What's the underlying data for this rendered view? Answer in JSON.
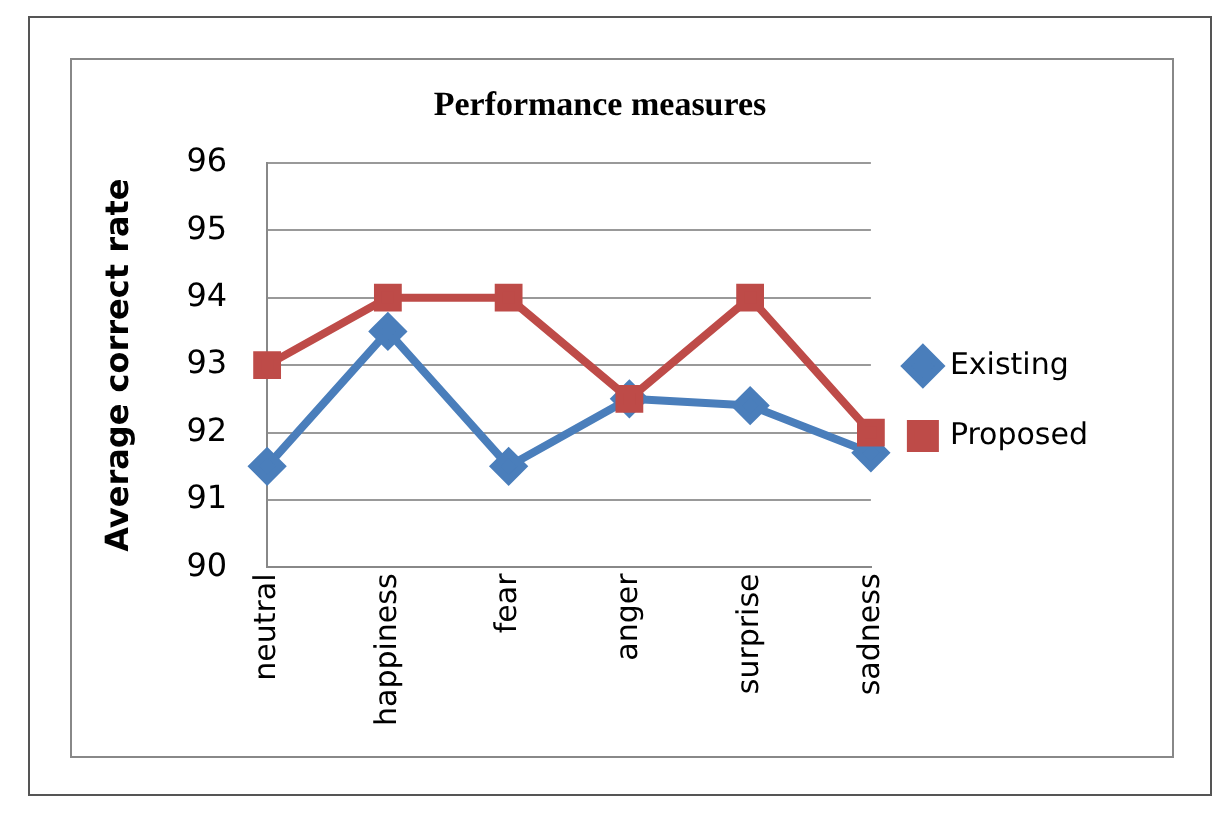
{
  "chart_data": {
    "type": "line",
    "title": "Performance measures",
    "ylabel": "Average correct rate",
    "categories": [
      "neutral",
      "happiness",
      "fear",
      "anger",
      "surprise",
      "sadness"
    ],
    "series": [
      {
        "name": "Existing",
        "color": "#4a7ebb",
        "marker": "diamond",
        "values": [
          91.5,
          93.5,
          91.5,
          92.5,
          92.4,
          91.7
        ]
      },
      {
        "name": "Proposed",
        "color": "#be4b48",
        "marker": "square",
        "values": [
          93,
          94,
          94,
          92.5,
          94,
          92
        ]
      }
    ],
    "ylim": [
      90,
      96
    ],
    "yticks": [
      90,
      91,
      92,
      93,
      94,
      95,
      96
    ],
    "grid": "y",
    "legend": "right"
  }
}
